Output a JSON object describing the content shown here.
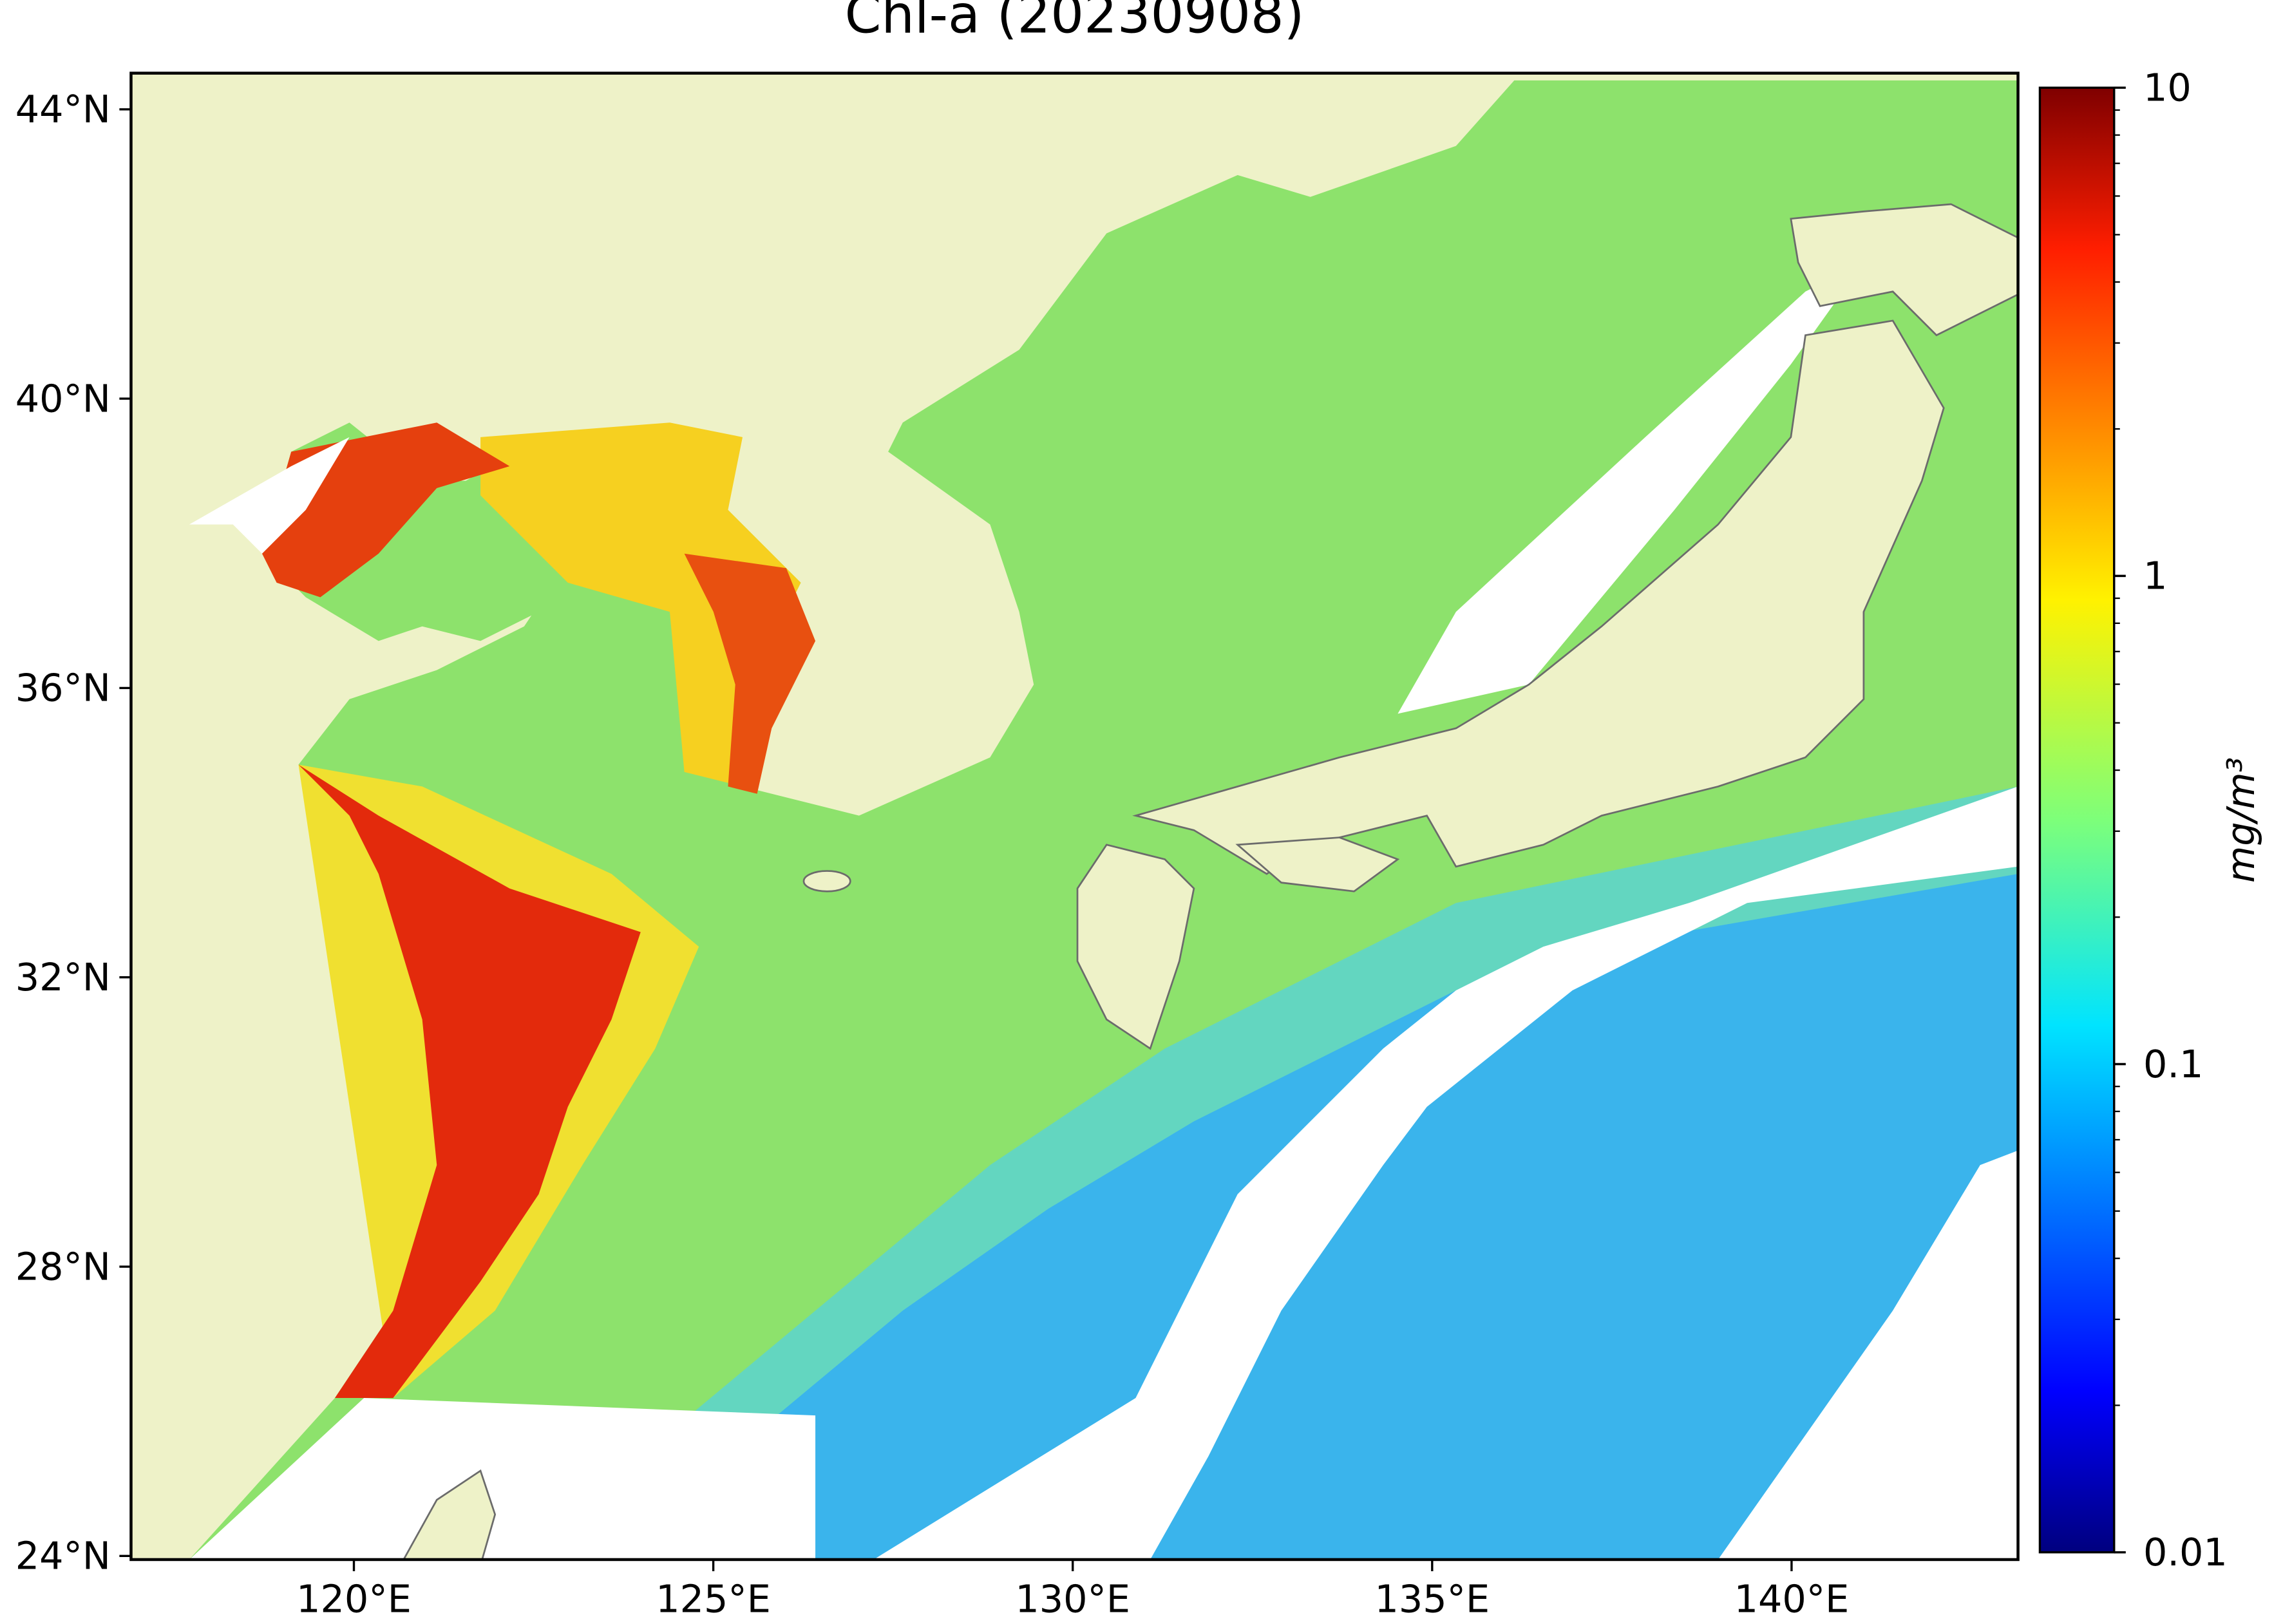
{
  "chart_data": {
    "type": "map",
    "title": "Chl-a (20230908)",
    "xlim": [
      116.9,
      143.15
    ],
    "ylim": [
      23.95,
      44.5
    ],
    "xticks": [
      {
        "value": 120,
        "label": "120°E"
      },
      {
        "value": 125,
        "label": "125°E"
      },
      {
        "value": 130,
        "label": "130°E"
      },
      {
        "value": 135,
        "label": "135°E"
      },
      {
        "value": 140,
        "label": "140°E"
      }
    ],
    "yticks": [
      {
        "value": 24,
        "label": "24°N"
      },
      {
        "value": 28,
        "label": "28°N"
      },
      {
        "value": 32,
        "label": "32°N"
      },
      {
        "value": 36,
        "label": "36°N"
      },
      {
        "value": 40,
        "label": "40°N"
      },
      {
        "value": 44,
        "label": "44°N"
      }
    ],
    "colorbar": {
      "label": "mg/m³",
      "log": true,
      "colormap": "jet",
      "lim": [
        0.01,
        10
      ],
      "ticks": [
        0.01,
        0.1,
        1,
        10
      ],
      "minor_ticks": [
        0.02,
        0.03,
        0.04,
        0.05,
        0.06,
        0.07,
        0.08,
        0.09,
        0.2,
        0.3,
        0.4,
        0.5,
        0.6,
        0.7,
        0.8,
        0.9,
        2,
        3,
        4,
        5,
        6,
        7,
        8,
        9
      ]
    }
  }
}
